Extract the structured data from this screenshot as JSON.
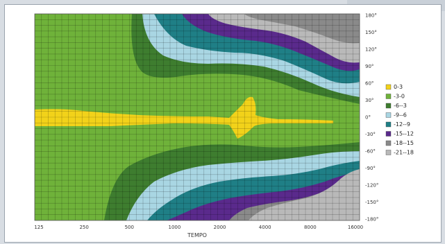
{
  "chart_data": {
    "type": "heatmap",
    "title": "",
    "xlabel": "TEMPO",
    "ylabel": "",
    "x_tick_labels": [
      "125",
      "250",
      "500",
      "1000",
      "2000",
      "4000",
      "8000",
      "16000"
    ],
    "y_tick_labels": [
      "180°",
      "150°",
      "120°",
      "90°",
      "60°",
      "30°",
      "0°",
      "-30°",
      "-60°",
      "-90°",
      "-120°",
      "-150°",
      "-180°"
    ],
    "grid": true,
    "legend_position": "right",
    "legend": [
      {
        "label": "0-3",
        "color": "#f2d21a"
      },
      {
        "label": "-3-0",
        "color": "#6fb23a"
      },
      {
        "label": "-6--3",
        "color": "#3e7d2f"
      },
      {
        "label": "-9--6",
        "color": "#a9d6e3"
      },
      {
        "label": "-12--9",
        "color": "#1f7f86"
      },
      {
        "label": "-15--12",
        "color": "#5a2a8c"
      },
      {
        "label": "-18--15",
        "color": "#8a8a8a"
      },
      {
        "label": "-21--18",
        "color": "#b9b9b9"
      }
    ]
  }
}
